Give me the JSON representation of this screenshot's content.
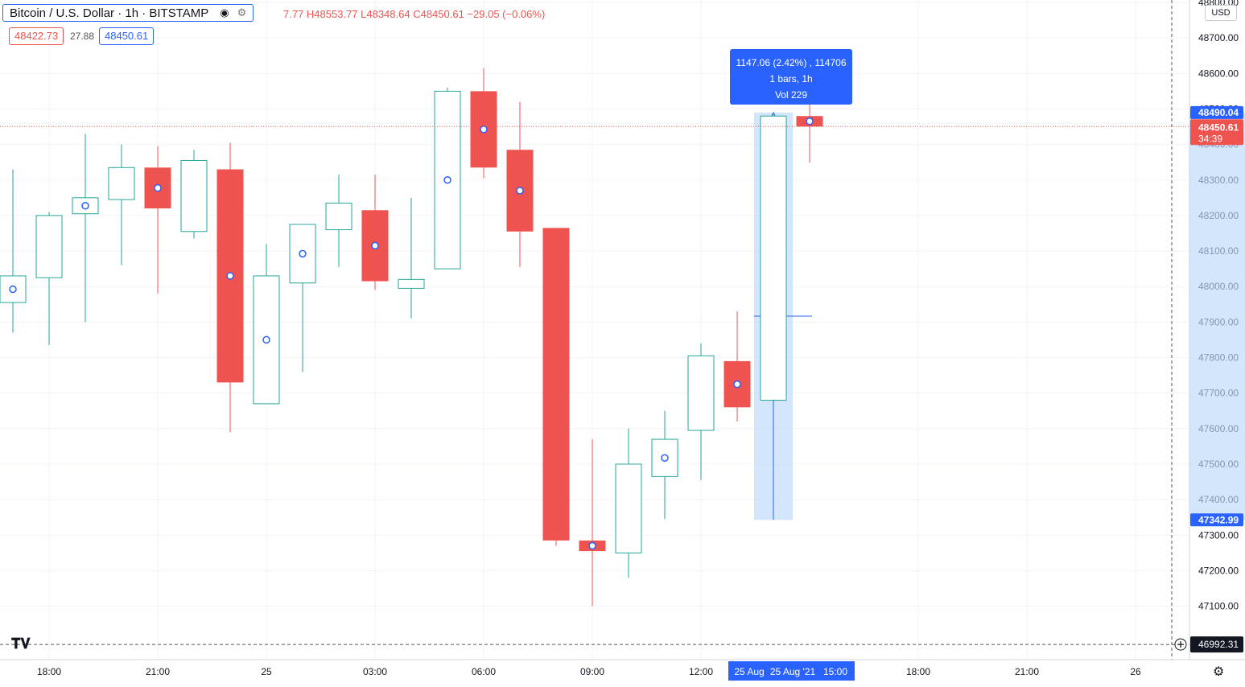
{
  "header": {
    "symbol": "Bitcoin / U.S. Dollar · 1h · BITSTAMP",
    "ohlc_text": "7.77 H48553.77 L48348.64 C48450.61 −29.05 (−0.06%)"
  },
  "quote": {
    "bid": "48422.73",
    "spread": "27.88",
    "ask": "48450.61"
  },
  "currency_selector": "USD",
  "icons": {
    "eye": "eye-icon",
    "gear": "gear-icon",
    "logo": "tradingview-logo",
    "settings": "settings-icon",
    "plus": "plus-icon"
  },
  "measure_tooltip": {
    "line1": "1147.06 (2.42%) , 114706",
    "line2": "1 bars, 1h",
    "line3": "Vol 229"
  },
  "colors": {
    "up": "#26a69a",
    "down": "#ef5350",
    "accent": "#2962ff",
    "grid": "#f0f3fa",
    "measure_fill": "#bbd9fb"
  },
  "chart_data": {
    "type": "candlestick",
    "title": "",
    "xlabel": "",
    "ylabel": "",
    "ylim": [
      46930,
      48820
    ],
    "grid": true,
    "y_ticks": [
      "48800.00",
      "48700.00",
      "48600.00",
      "48500.00",
      "48400.00",
      "48300.00",
      "48200.00",
      "48100.00",
      "48000.00",
      "47900.00",
      "47800.00",
      "47700.00",
      "47600.00",
      "47500.00",
      "47400.00",
      "47300.00",
      "47200.00",
      "47100.00"
    ],
    "x_ticks": [
      {
        "label": "18:00",
        "slot": 1
      },
      {
        "label": "21:00",
        "slot": 4
      },
      {
        "label": "25",
        "slot": 7
      },
      {
        "label": "03:00",
        "slot": 10
      },
      {
        "label": "06:00",
        "slot": 13
      },
      {
        "label": "09:00",
        "slot": 16
      },
      {
        "label": "12:00",
        "slot": 19
      },
      {
        "label": "18:00",
        "slot": 25
      },
      {
        "label": "21:00",
        "slot": 28
      },
      {
        "label": "26",
        "slot": 31
      }
    ],
    "candles": [
      {
        "slot": 0,
        "open": 47955,
        "high": 48330,
        "low": 47870,
        "close": 48030
      },
      {
        "slot": 1,
        "open": 48025,
        "high": 48210,
        "low": 47835,
        "close": 48200
      },
      {
        "slot": 2,
        "open": 48205,
        "high": 48430,
        "low": 47900,
        "close": 48250
      },
      {
        "slot": 3,
        "open": 48245,
        "high": 48400,
        "low": 48060,
        "close": 48335
      },
      {
        "slot": 4,
        "open": 48335,
        "high": 48395,
        "low": 47980,
        "close": 48220
      },
      {
        "slot": 5,
        "open": 48155,
        "high": 48385,
        "low": 48135,
        "close": 48355
      },
      {
        "slot": 6,
        "open": 48330,
        "high": 48405,
        "low": 47590,
        "close": 47730
      },
      {
        "slot": 7,
        "open": 47670,
        "high": 48120,
        "low": 47670,
        "close": 48030
      },
      {
        "slot": 8,
        "open": 48010,
        "high": 48175,
        "low": 47760,
        "close": 48175
      },
      {
        "slot": 9,
        "open": 48160,
        "high": 48315,
        "low": 48055,
        "close": 48235
      },
      {
        "slot": 10,
        "open": 48215,
        "high": 48315,
        "low": 47990,
        "close": 48015
      },
      {
        "slot": 11,
        "open": 47995,
        "high": 48250,
        "low": 47910,
        "close": 48020
      },
      {
        "slot": 12,
        "open": 48050,
        "high": 48560,
        "low": 48050,
        "close": 48550
      },
      {
        "slot": 13,
        "open": 48550,
        "high": 48615,
        "low": 48305,
        "close": 48335
      },
      {
        "slot": 14,
        "open": 48385,
        "high": 48520,
        "low": 48055,
        "close": 48155
      },
      {
        "slot": 15,
        "open": 48165,
        "high": 48165,
        "low": 47270,
        "close": 47285
      },
      {
        "slot": 16,
        "open": 47285,
        "high": 47570,
        "low": 47100,
        "close": 47255
      },
      {
        "slot": 17,
        "open": 47250,
        "high": 47600,
        "low": 47180,
        "close": 47500
      },
      {
        "slot": 18,
        "open": 47465,
        "high": 47650,
        "low": 47345,
        "close": 47570
      },
      {
        "slot": 19,
        "open": 47595,
        "high": 47840,
        "low": 47455,
        "close": 47805
      },
      {
        "slot": 20,
        "open": 47790,
        "high": 47930,
        "low": 47620,
        "close": 47660
      },
      {
        "slot": 21,
        "open": 47680,
        "high": 48490,
        "low": 47680,
        "close": 48480
      },
      {
        "slot": 22,
        "open": 48480,
        "high": 48553.77,
        "low": 48348.64,
        "close": 48450.61
      }
    ],
    "last_price": {
      "value": 48450.61,
      "label": "48450.61",
      "countdown": "34:39"
    },
    "crosshair_price": {
      "value": 46992.31,
      "label": "46992.31"
    },
    "measure": {
      "from_slot": 21,
      "to_slot": 22,
      "low": 47342.99,
      "high": 48490.04,
      "low_label": "47342.99",
      "high_label": "48490.04",
      "x_labels": [
        "25 Aug",
        "25 Aug '21",
        "15:00"
      ]
    }
  }
}
